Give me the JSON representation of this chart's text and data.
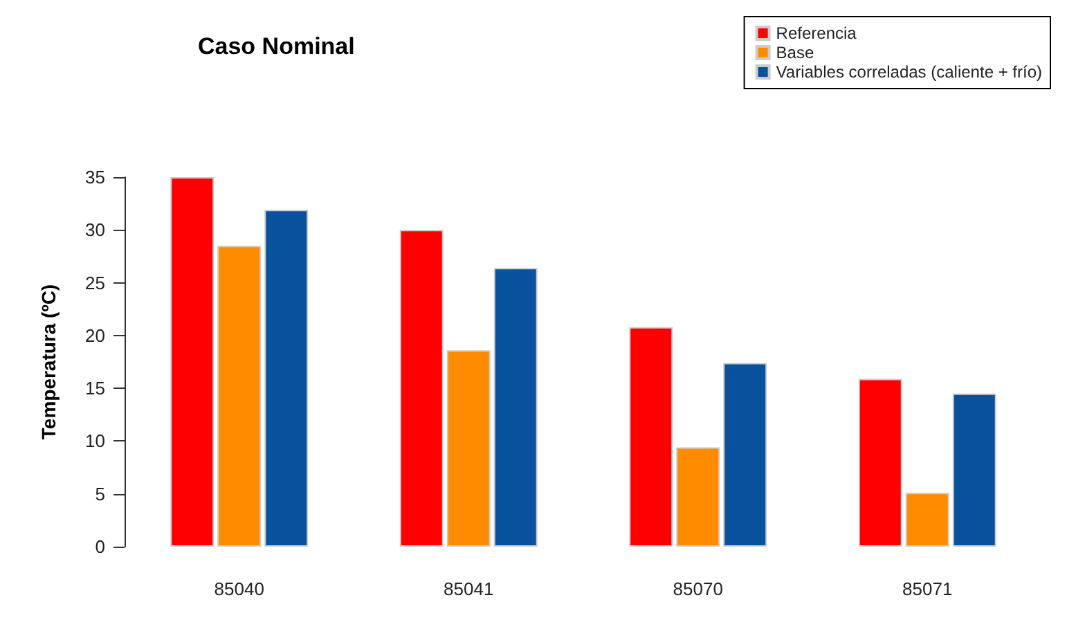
{
  "chart_data": {
    "type": "bar",
    "title": "Caso Nominal",
    "ylabel": "Temperatura (ºC)",
    "categories": [
      "85040",
      "85041",
      "85070",
      "85071"
    ],
    "series": [
      {
        "name": "Referencia",
        "color": "#ff0000",
        "values": [
          35,
          30.0,
          20.8,
          15.9
        ]
      },
      {
        "name": "Base",
        "color": "#ff8c00",
        "values": [
          28.5,
          18.6,
          9.4,
          5.1
        ]
      },
      {
        "name": "Variables correladas (caliente + frío)",
        "color": "#08519c",
        "values": [
          31.9,
          26.4,
          17.4,
          14.5
        ]
      }
    ],
    "ylim": [
      0,
      35
    ],
    "yticks": [
      0,
      5,
      10,
      15,
      20,
      25,
      30,
      35
    ],
    "grid": false,
    "legend": "top right"
  }
}
